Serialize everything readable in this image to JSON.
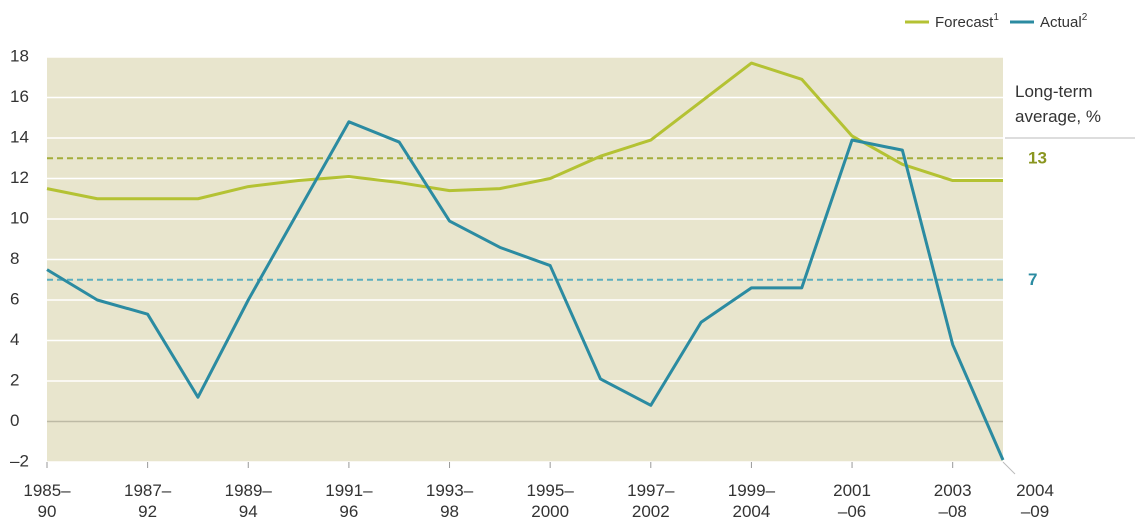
{
  "chart_data": {
    "type": "line",
    "categories": [
      "1985–\n90",
      null,
      "1987–\n92",
      null,
      "1989–\n94",
      null,
      "1991–\n96",
      null,
      "1993–\n98",
      null,
      "1995–\n2000",
      null,
      "1997–\n2002",
      null,
      "1999–\n2004",
      null,
      "2001\n–06",
      null,
      "2003\n–08",
      "2004\n–09"
    ],
    "series": [
      {
        "name": "Forecast",
        "footnote": "1",
        "color": "#b4c233",
        "values": [
          11.5,
          11.0,
          11.0,
          11.0,
          11.6,
          11.9,
          12.1,
          11.8,
          11.4,
          11.5,
          12.0,
          13.1,
          13.9,
          15.8,
          17.7,
          16.9,
          14.1,
          12.7,
          11.9,
          11.9
        ]
      },
      {
        "name": "Actual",
        "footnote": "2",
        "color": "#2b8ba1",
        "values": [
          7.5,
          6.0,
          5.3,
          1.2,
          6.0,
          10.4,
          14.8,
          13.8,
          9.9,
          8.6,
          7.7,
          2.1,
          0.8,
          4.9,
          6.6,
          6.6,
          13.9,
          13.4,
          3.8,
          -1.9
        ]
      }
    ],
    "ylim": [
      -2,
      18
    ],
    "yticks": [
      {
        "value": -2,
        "label": "–2"
      },
      0,
      2,
      4,
      6,
      8,
      10,
      12,
      14,
      16,
      18
    ],
    "grid": true,
    "reference_title": "Long-term\naverage, %",
    "reference_lines": [
      {
        "value": 13,
        "color": "#8a9620",
        "line_color": "#a3ad3a"
      },
      {
        "value": 7,
        "color": "#2b8ba1",
        "line_color": "#5aaebf"
      }
    ],
    "legend": "top-right"
  }
}
